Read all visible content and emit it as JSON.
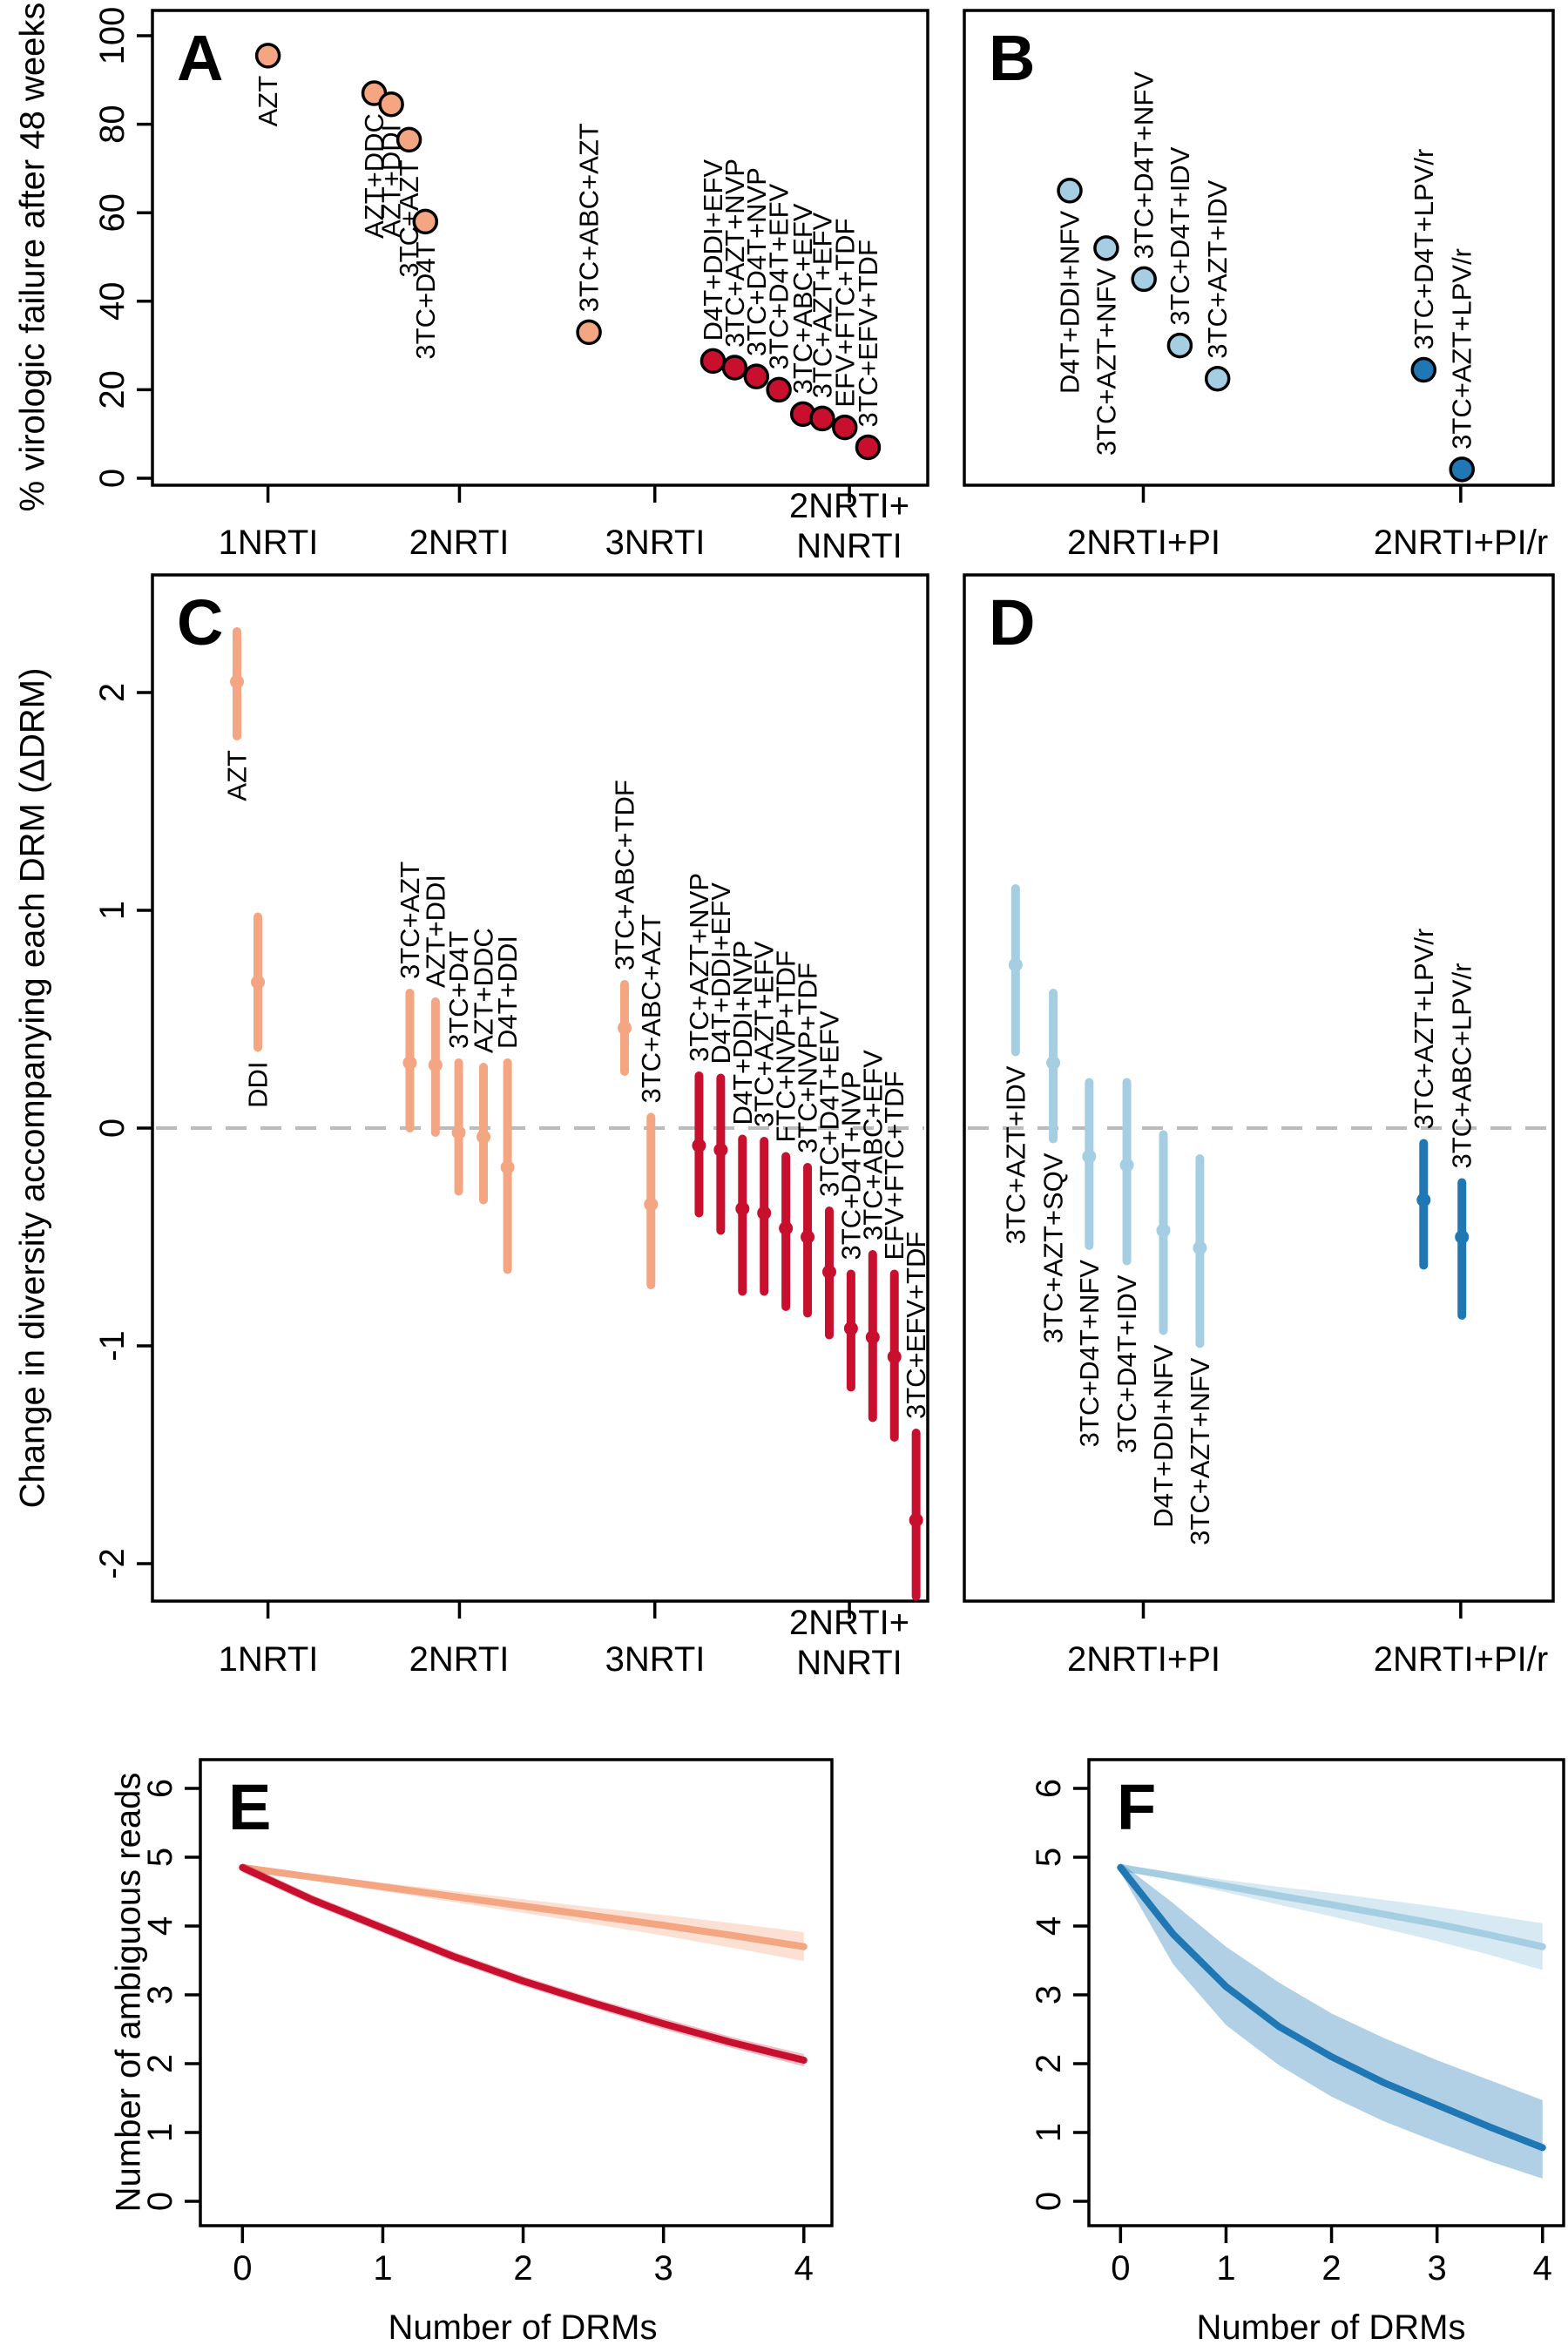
{
  "colors": {
    "lightOrange": "#F4A582",
    "red": "#C8102E",
    "lightBlue": "#A6CEE3",
    "darkBlue": "#1F78B4",
    "band_lightOrange": "rgba(244,165,130,0.35)",
    "band_red": "rgba(200,16,46,0.28)",
    "band_lightBlue": "rgba(166,206,227,0.45)",
    "band_darkBlue": "rgba(31,120,180,0.35)",
    "zero_line": "#bbbbbb",
    "axis": "#000000"
  },
  "chart_data": {
    "panels": [
      {
        "id": "A",
        "letter": "A",
        "type": "scatter",
        "ylabel": "% virologic failure after 48 weeks",
        "ylim": [
          0,
          100
        ],
        "yticks": [
          0,
          20,
          40,
          60,
          80,
          100
        ],
        "xticks": [
          {
            "label": "1NRTI",
            "x": 0.149
          },
          {
            "label": "2NRTI",
            "x": 0.396
          },
          {
            "label": "3NRTI",
            "x": 0.648
          },
          {
            "label": "2NRTI+\nNNRTI",
            "x": 0.899
          }
        ],
        "points": [
          {
            "label": "AZT",
            "x": 0.149,
            "y": 95.5,
            "color": "lightOrange",
            "side": "below"
          },
          {
            "label": "AZT+DDC",
            "x": 0.286,
            "y": 87,
            "color": "lightOrange",
            "side": "below"
          },
          {
            "label": "AZT+DDI",
            "x": 0.308,
            "y": 84.5,
            "color": "lightOrange",
            "side": "below"
          },
          {
            "label": "3TC+AZT",
            "x": 0.331,
            "y": 76.5,
            "color": "lightOrange",
            "side": "below"
          },
          {
            "label": "3TC+D4T",
            "x": 0.352,
            "y": 58,
            "color": "lightOrange",
            "side": "below"
          },
          {
            "label": "3TC+ABC+AZT",
            "x": 0.563,
            "y": 33,
            "color": "lightOrange",
            "side": "above"
          },
          {
            "label": "D4T+DDI+EFV",
            "x": 0.723,
            "y": 26.5,
            "color": "red",
            "side": "above"
          },
          {
            "label": "3TC+AZT+NVP",
            "x": 0.751,
            "y": 25,
            "color": "red",
            "side": "above"
          },
          {
            "label": "3TC+D4T+NVP",
            "x": 0.779,
            "y": 23,
            "color": "red",
            "side": "above"
          },
          {
            "label": "3TC+D4T+EFV",
            "x": 0.808,
            "y": 20,
            "color": "red",
            "side": "above"
          },
          {
            "label": "3TC+ABC+EFV",
            "x": 0.839,
            "y": 14.5,
            "color": "red",
            "side": "above"
          },
          {
            "label": "3TC+AZT+EFV",
            "x": 0.864,
            "y": 13.5,
            "color": "red",
            "side": "above"
          },
          {
            "label": "EFV+FTC+TDF",
            "x": 0.893,
            "y": 11.5,
            "color": "red",
            "side": "above"
          },
          {
            "label": "3TC+EFV+TDF",
            "x": 0.923,
            "y": 7,
            "color": "red",
            "side": "above"
          }
        ]
      },
      {
        "id": "B",
        "letter": "B",
        "type": "scatter",
        "ylim": [
          0,
          100
        ],
        "xticks": [
          {
            "label": "2NRTI+PI",
            "x": 0.304
          },
          {
            "label": "2NRTI+PI/r",
            "x": 0.843
          }
        ],
        "points": [
          {
            "label": "D4T+DDI+NFV",
            "x": 0.179,
            "y": 65,
            "color": "lightBlue",
            "side": "below"
          },
          {
            "label": "3TC+AZT+NFV",
            "x": 0.241,
            "y": 52,
            "color": "lightBlue",
            "side": "below"
          },
          {
            "label": "3TC+D4T+NFV",
            "x": 0.305,
            "y": 45,
            "color": "lightBlue",
            "side": "above"
          },
          {
            "label": "3TC+D4T+IDV",
            "x": 0.366,
            "y": 30,
            "color": "lightBlue",
            "side": "above"
          },
          {
            "label": "3TC+AZT+IDV",
            "x": 0.43,
            "y": 22.5,
            "color": "lightBlue",
            "side": "above"
          },
          {
            "label": "3TC+D4T+LPV/r",
            "x": 0.78,
            "y": 24.5,
            "color": "darkBlue",
            "side": "above"
          },
          {
            "label": "3TC+AZT+LPV/r",
            "x": 0.845,
            "y": 2,
            "color": "darkBlue",
            "side": "above"
          }
        ]
      },
      {
        "id": "C",
        "letter": "C",
        "type": "errorbar",
        "ylabel": "Change in diversity accompanying each DRM (ΔDRM)",
        "ylim": [
          -2.17,
          2.54
        ],
        "yticks": [
          -2,
          -1,
          0,
          1,
          2
        ],
        "zero_line": true,
        "xticks": [
          {
            "label": "1NRTI",
            "x": 0.149
          },
          {
            "label": "2NRTI",
            "x": 0.396
          },
          {
            "label": "3NRTI",
            "x": 0.648
          },
          {
            "label": "2NRTI+\nNNRTI",
            "x": 0.899
          }
        ],
        "points": [
          {
            "label": "AZT",
            "x": 0.109,
            "y": 2.05,
            "lo": 1.8,
            "hi": 2.28,
            "color": "lightOrange",
            "side": "below"
          },
          {
            "label": "DDI",
            "x": 0.136,
            "y": 0.67,
            "lo": 0.37,
            "hi": 0.97,
            "color": "lightOrange",
            "side": "below"
          },
          {
            "label": "3TC+AZT",
            "x": 0.332,
            "y": 0.3,
            "lo": 0.0,
            "hi": 0.62,
            "color": "lightOrange",
            "side": "above"
          },
          {
            "label": "AZT+DDI",
            "x": 0.365,
            "y": 0.29,
            "lo": -0.02,
            "hi": 0.58,
            "color": "lightOrange",
            "side": "above"
          },
          {
            "label": "3TC+D4T",
            "x": 0.395,
            "y": -0.02,
            "lo": -0.29,
            "hi": 0.3,
            "color": "lightOrange",
            "side": "above"
          },
          {
            "label": "AZT+DDC",
            "x": 0.427,
            "y": -0.04,
            "lo": -0.33,
            "hi": 0.28,
            "color": "lightOrange",
            "side": "above"
          },
          {
            "label": "D4T+DDI",
            "x": 0.458,
            "y": -0.18,
            "lo": -0.65,
            "hi": 0.3,
            "color": "lightOrange",
            "side": "above"
          },
          {
            "label": "3TC+ABC+TDF",
            "x": 0.609,
            "y": 0.46,
            "lo": 0.26,
            "hi": 0.66,
            "color": "lightOrange",
            "side": "above"
          },
          {
            "label": "3TC+ABC+AZT",
            "x": 0.643,
            "y": -0.35,
            "lo": -0.72,
            "hi": 0.05,
            "color": "lightOrange",
            "side": "above"
          },
          {
            "label": "3TC+AZT+NVP",
            "x": 0.705,
            "y": -0.08,
            "lo": -0.39,
            "hi": 0.24,
            "color": "red",
            "side": "above"
          },
          {
            "label": "D4T+DDI+EFV",
            "x": 0.733,
            "y": -0.1,
            "lo": -0.47,
            "hi": 0.23,
            "color": "red",
            "side": "above"
          },
          {
            "label": "D4T+DDI+NVP",
            "x": 0.761,
            "y": -0.37,
            "lo": -0.75,
            "hi": -0.05,
            "color": "red",
            "side": "above"
          },
          {
            "label": "3TC+AZT+EFV",
            "x": 0.789,
            "y": -0.39,
            "lo": -0.75,
            "hi": -0.06,
            "color": "red",
            "side": "above"
          },
          {
            "label": "FTC+NVP+TDF",
            "x": 0.817,
            "y": -0.46,
            "lo": -0.82,
            "hi": -0.13,
            "color": "red",
            "side": "above"
          },
          {
            "label": "3TC+NVP+TDF",
            "x": 0.845,
            "y": -0.5,
            "lo": -0.85,
            "hi": -0.18,
            "color": "red",
            "side": "above"
          },
          {
            "label": "3TC+D4T+EFV",
            "x": 0.873,
            "y": -0.66,
            "lo": -0.95,
            "hi": -0.38,
            "color": "red",
            "side": "above"
          },
          {
            "label": "3TC+D4T+NVP",
            "x": 0.901,
            "y": -0.92,
            "lo": -1.19,
            "hi": -0.67,
            "color": "red",
            "side": "above"
          },
          {
            "label": "3TC+ABC+EFV",
            "x": 0.929,
            "y": -0.96,
            "lo": -1.33,
            "hi": -0.58,
            "color": "red",
            "side": "above"
          },
          {
            "label": "EFV+FTC+TDF",
            "x": 0.957,
            "y": -1.05,
            "lo": -1.42,
            "hi": -0.67,
            "color": "red",
            "side": "above"
          },
          {
            "label": "3TC+EFV+TDF",
            "x": 0.985,
            "y": -1.8,
            "lo": -2.15,
            "hi": -1.4,
            "color": "red",
            "side": "above"
          }
        ]
      },
      {
        "id": "D",
        "letter": "D",
        "type": "errorbar",
        "ylim": [
          -2.17,
          2.54
        ],
        "zero_line": true,
        "xticks": [
          {
            "label": "2NRTI+PI",
            "x": 0.304
          },
          {
            "label": "2NRTI+PI/r",
            "x": 0.843
          }
        ],
        "points": [
          {
            "label": "3TC+AZT+IDV",
            "x": 0.087,
            "y": 0.75,
            "lo": 0.35,
            "hi": 1.1,
            "color": "lightBlue",
            "side": "below"
          },
          {
            "label": "3TC+AZT+SQV",
            "x": 0.151,
            "y": 0.3,
            "lo": -0.05,
            "hi": 0.62,
            "color": "lightBlue",
            "side": "below"
          },
          {
            "label": "3TC+D4T+NFV",
            "x": 0.212,
            "y": -0.13,
            "lo": -0.54,
            "hi": 0.21,
            "color": "lightBlue",
            "side": "below"
          },
          {
            "label": "3TC+D4T+IDV",
            "x": 0.276,
            "y": -0.17,
            "lo": -0.61,
            "hi": 0.21,
            "color": "lightBlue",
            "side": "below"
          },
          {
            "label": "D4T+DDI+NFV",
            "x": 0.338,
            "y": -0.47,
            "lo": -0.93,
            "hi": -0.03,
            "color": "lightBlue",
            "side": "below"
          },
          {
            "label": "3TC+AZT+NFV",
            "x": 0.4,
            "y": -0.55,
            "lo": -0.99,
            "hi": -0.14,
            "color": "lightBlue",
            "side": "below"
          },
          {
            "label": "3TC+AZT+LPV/r",
            "x": 0.78,
            "y": -0.33,
            "lo": -0.63,
            "hi": -0.07,
            "color": "darkBlue",
            "side": "above"
          },
          {
            "label": "3TC+ABC+LPV/r",
            "x": 0.845,
            "y": -0.5,
            "lo": -0.86,
            "hi": -0.25,
            "color": "darkBlue",
            "side": "above"
          }
        ]
      },
      {
        "id": "E",
        "letter": "E",
        "type": "lines",
        "ylabel": "Number of ambiguous reads",
        "xlabel": "Number of DRMs",
        "ylim": [
          0,
          6
        ],
        "yticks": [
          0,
          1,
          2,
          3,
          4,
          5,
          6
        ],
        "xticks_num": [
          0,
          1,
          2,
          3,
          4
        ],
        "series": [
          {
            "name": "lightOrange-curve",
            "color": "lightOrange",
            "x": [
              0,
              0.5,
              1,
              1.5,
              2,
              2.5,
              3,
              3.5,
              4
            ],
            "y": [
              4.85,
              4.71,
              4.57,
              4.43,
              4.29,
              4.15,
              4.01,
              3.86,
              3.7
            ],
            "hi": [
              4.9,
              4.76,
              4.63,
              4.51,
              4.39,
              4.27,
              4.16,
              4.04,
              3.91
            ],
            "lo": [
              4.8,
              4.66,
              4.51,
              4.35,
              4.19,
              4.03,
              3.86,
              3.68,
              3.49
            ]
          },
          {
            "name": "red-curve",
            "color": "red",
            "x": [
              0,
              0.5,
              1,
              1.5,
              2,
              2.5,
              3,
              3.5,
              4
            ],
            "y": [
              4.85,
              4.38,
              3.97,
              3.56,
              3.2,
              2.88,
              2.58,
              2.3,
              2.05
            ],
            "hi": [
              4.92,
              4.45,
              4.04,
              3.63,
              3.27,
              2.95,
              2.66,
              2.38,
              2.14
            ],
            "lo": [
              4.78,
              4.31,
              3.9,
              3.49,
              3.13,
              2.81,
              2.5,
              2.22,
              1.96
            ]
          }
        ]
      },
      {
        "id": "F",
        "letter": "F",
        "type": "lines",
        "xlabel": "Number of DRMs",
        "ylim": [
          0,
          6
        ],
        "yticks": [
          0,
          1,
          2,
          3,
          4,
          5,
          6
        ],
        "xticks_num": [
          0,
          1,
          2,
          3,
          4
        ],
        "series": [
          {
            "name": "lightBlue-curve",
            "color": "lightBlue",
            "x": [
              0,
              0.5,
              1,
              1.5,
              2,
              2.5,
              3,
              3.5,
              4
            ],
            "y": [
              4.85,
              4.72,
              4.58,
              4.44,
              4.31,
              4.17,
              4.03,
              3.87,
              3.7
            ],
            "hi": [
              4.89,
              4.78,
              4.67,
              4.57,
              4.48,
              4.38,
              4.28,
              4.16,
              4.04
            ],
            "lo": [
              4.81,
              4.66,
              4.49,
              4.31,
              4.14,
              3.96,
              3.78,
              3.58,
              3.36
            ]
          },
          {
            "name": "darkBlue-curve",
            "color": "darkBlue",
            "x": [
              0,
              0.5,
              1,
              1.5,
              2,
              2.5,
              3,
              3.5,
              4
            ],
            "y": [
              4.85,
              3.88,
              3.12,
              2.54,
              2.1,
              1.72,
              1.4,
              1.08,
              0.78
            ],
            "hi": [
              4.92,
              4.33,
              3.7,
              3.18,
              2.73,
              2.37,
              2.05,
              1.76,
              1.47
            ],
            "lo": [
              4.78,
              3.44,
              2.56,
              1.98,
              1.52,
              1.16,
              0.86,
              0.58,
              0.33
            ]
          }
        ]
      }
    ]
  }
}
